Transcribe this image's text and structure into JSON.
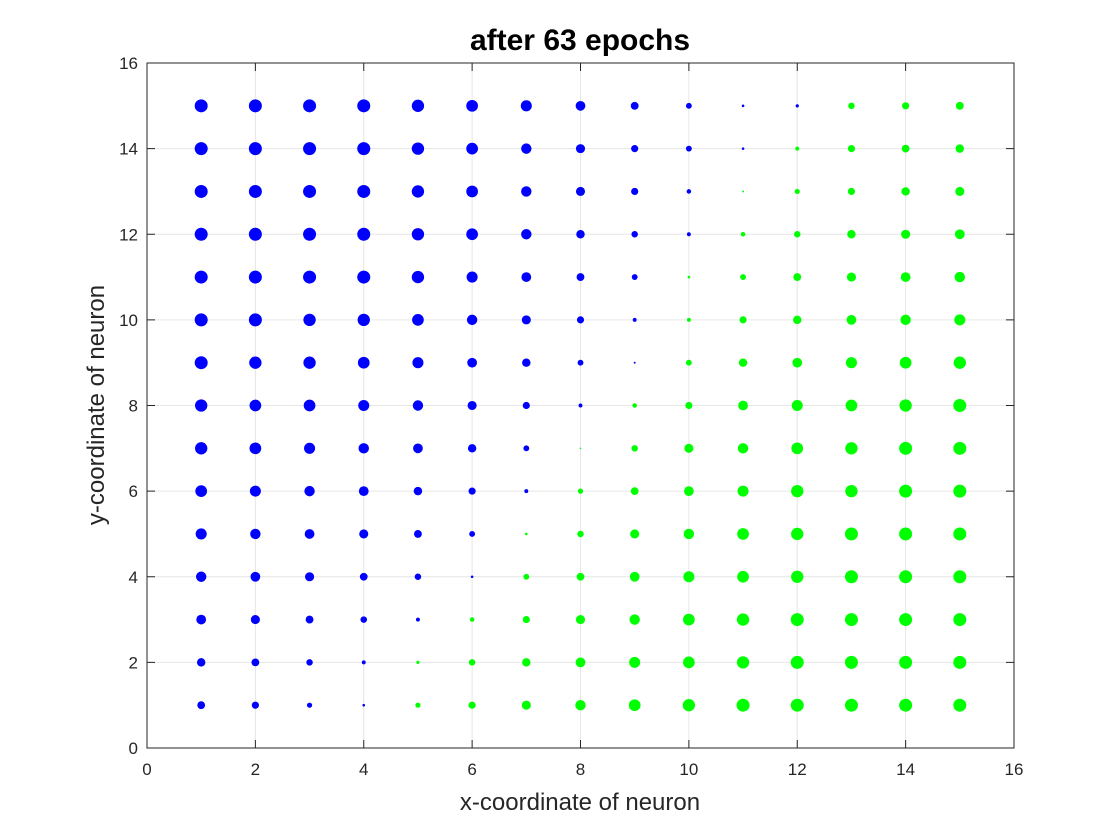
{
  "chart_data": {
    "type": "scatter",
    "title": "after 63 epochs",
    "xlabel": "x-coordinate of neuron",
    "ylabel": "y-coordinate of neuron",
    "xlim": [
      0,
      16
    ],
    "ylim": [
      0,
      16
    ],
    "xticks": [
      "0",
      "2",
      "4",
      "6",
      "8",
      "10",
      "12",
      "14",
      "16"
    ],
    "yticks": [
      "0",
      "2",
      "4",
      "6",
      "8",
      "10",
      "12",
      "14",
      "16"
    ],
    "grid": true,
    "colors": {
      "blue": "#0000ff",
      "green": "#00ff00",
      "axis": "#262626",
      "grid": "#e6e6e6"
    },
    "grid_x": [
      1,
      2,
      3,
      4,
      5,
      6,
      7,
      8,
      9,
      10,
      11,
      12,
      13,
      14,
      15
    ],
    "grid_y": [
      15,
      14,
      13,
      12,
      11,
      10,
      9,
      8,
      7,
      6,
      5,
      4,
      3,
      2,
      1
    ],
    "color_rows": [
      "BBBBBBBBBBBBGGG",
      "BBBBBBBBBBBGGGG",
      "BBBBBBBBBBGGGGG",
      "BBBBBBBBBBGGGGG",
      "BBBBBBBBBGGGGGG",
      "BBBBBBBBBGGGGGG",
      "BBBBBBBBBGGGGGG",
      "BBBBBBBBGGGGGGG",
      "BBBBBBBGGGGGGGG",
      "BBBBBBBGGGGGGGG",
      "BBBBBBGGGGGGGGG",
      "BBBBBBGGGGGGGGG",
      "BBBBBGGGGGGGGGG",
      "BBBBGGGGGGGGGGG",
      "BBBBGGGGGGGGGGG"
    ],
    "size_rows": [
      [
        1.0,
        1.0,
        1.0,
        1.0,
        0.95,
        0.9,
        0.85,
        0.75,
        0.6,
        0.45,
        0.2,
        0.25,
        0.5,
        0.55,
        0.6
      ],
      [
        1.0,
        1.0,
        1.0,
        1.0,
        0.95,
        0.9,
        0.8,
        0.7,
        0.55,
        0.45,
        0.2,
        0.3,
        0.55,
        0.6,
        0.65
      ],
      [
        1.0,
        1.0,
        1.0,
        1.0,
        0.95,
        0.9,
        0.8,
        0.7,
        0.55,
        0.35,
        0.15,
        0.4,
        0.55,
        0.65,
        0.7
      ],
      [
        1.0,
        1.0,
        1.0,
        1.0,
        0.95,
        0.9,
        0.8,
        0.65,
        0.5,
        0.3,
        0.35,
        0.5,
        0.65,
        0.7,
        0.75
      ],
      [
        1.0,
        1.0,
        1.0,
        1.0,
        0.95,
        0.85,
        0.75,
        0.6,
        0.45,
        0.2,
        0.45,
        0.6,
        0.7,
        0.75,
        0.8
      ],
      [
        1.0,
        1.0,
        0.95,
        0.95,
        0.9,
        0.8,
        0.7,
        0.55,
        0.3,
        0.3,
        0.55,
        0.65,
        0.75,
        0.8,
        0.85
      ],
      [
        1.0,
        0.95,
        0.95,
        0.9,
        0.85,
        0.75,
        0.65,
        0.45,
        0.15,
        0.45,
        0.65,
        0.75,
        0.85,
        0.9,
        0.95
      ],
      [
        0.95,
        0.9,
        0.9,
        0.85,
        0.8,
        0.7,
        0.55,
        0.3,
        0.35,
        0.55,
        0.75,
        0.85,
        0.9,
        0.95,
        1.0
      ],
      [
        0.95,
        0.9,
        0.85,
        0.8,
        0.75,
        0.65,
        0.45,
        0.1,
        0.5,
        0.7,
        0.8,
        0.9,
        0.95,
        1.0,
        1.0
      ],
      [
        0.9,
        0.85,
        0.8,
        0.75,
        0.65,
        0.55,
        0.3,
        0.4,
        0.6,
        0.75,
        0.85,
        0.95,
        0.95,
        1.0,
        1.0
      ],
      [
        0.85,
        0.8,
        0.75,
        0.7,
        0.6,
        0.45,
        0.2,
        0.5,
        0.7,
        0.8,
        0.9,
        0.95,
        1.0,
        1.0,
        1.0
      ],
      [
        0.8,
        0.75,
        0.7,
        0.6,
        0.5,
        0.2,
        0.45,
        0.6,
        0.75,
        0.85,
        0.9,
        0.95,
        1.0,
        1.0,
        1.0
      ],
      [
        0.75,
        0.7,
        0.6,
        0.5,
        0.3,
        0.35,
        0.55,
        0.7,
        0.8,
        0.9,
        0.95,
        1.0,
        1.0,
        1.0,
        1.0
      ],
      [
        0.65,
        0.6,
        0.5,
        0.3,
        0.25,
        0.5,
        0.65,
        0.75,
        0.85,
        0.9,
        0.95,
        1.0,
        1.0,
        1.0,
        1.0
      ],
      [
        0.6,
        0.55,
        0.4,
        0.2,
        0.4,
        0.55,
        0.7,
        0.8,
        0.9,
        0.95,
        1.0,
        1.0,
        1.0,
        1.0,
        1.0
      ]
    ]
  }
}
